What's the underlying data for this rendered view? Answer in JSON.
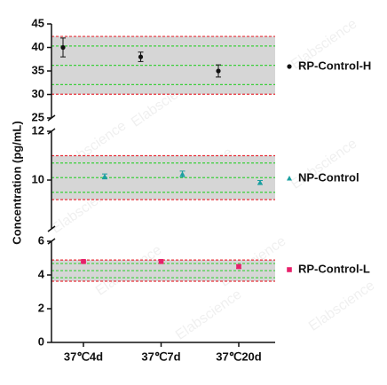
{
  "watermark": "Elabscience",
  "chart_data": [
    {
      "type": "errorbar",
      "ylim": [
        25,
        45
      ],
      "yticks": [
        25,
        30,
        35,
        40,
        45
      ],
      "band_color": "#d6d6d6",
      "limit_color": "#e8303a",
      "center_color": "#3ccf3c",
      "limit_lines": [
        30.05,
        42.35
      ],
      "center_lines": [
        32.1,
        36.2,
        40.3
      ],
      "series": [
        {
          "name": "RP-Control-H",
          "color": "#111111",
          "marker": "circle",
          "values": [
            40,
            38,
            35
          ],
          "errors": [
            2,
            1,
            1.3
          ]
        }
      ]
    },
    {
      "type": "errorbar",
      "ylim": [
        8,
        12
      ],
      "yticks": [
        10,
        12
      ],
      "ylabel": "Concentration (pg/mL)",
      "band_color": "#d6d6d6",
      "limit_color": "#e8303a",
      "center_color": "#3ccf3c",
      "limit_lines": [
        9.2,
        11.0
      ],
      "center_lines": [
        9.5,
        10.1,
        10.7
      ],
      "series": [
        {
          "name": "NP-Control",
          "color": "#1a9fa0",
          "marker": "triangle",
          "values": [
            10.15,
            10.25,
            9.9
          ],
          "errors": [
            0.1,
            0.12,
            0.08
          ]
        }
      ]
    },
    {
      "type": "errorbar",
      "ylim": [
        0,
        6
      ],
      "yticks": [
        0,
        2,
        4,
        6
      ],
      "categories": [
        "37℃4d",
        "37℃7d",
        "37℃20d"
      ],
      "band_color": "#d6d6d6",
      "limit_color": "#e8303a",
      "center_color": "#3ccf3c",
      "limit_lines": [
        3.63,
        4.89
      ],
      "center_lines": [
        3.84,
        4.26,
        4.68
      ],
      "series": [
        {
          "name": "RP-Control-L",
          "color": "#e8206a",
          "marker": "square",
          "values": [
            4.8,
            4.8,
            4.5
          ],
          "errors": [
            0.05,
            0.1,
            0.1
          ]
        }
      ]
    }
  ]
}
